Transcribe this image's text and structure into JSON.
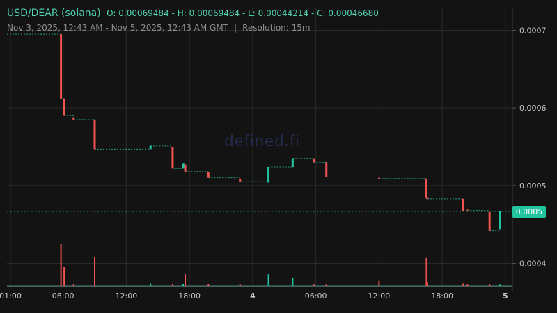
{
  "header": {
    "pair": "USD/DEAR (solana)",
    "ohlc": "O: 0.00069484 - H: 0.00069484 - L: 0.00044214 - C: 0.00046680",
    "range": "Nov 3, 2025, 12:43 AM - Nov 5, 2025, 12:43 AM GMT",
    "separator": "|",
    "resolution": "Resolution: 15m"
  },
  "watermark": "defined.fi",
  "current_price_label": "0.0005",
  "colors": {
    "up": "#22c39f",
    "down": "#ef5350",
    "background": "#131313",
    "grid": "#2b2b2b",
    "text": "#c7c7c7"
  },
  "chart_data": {
    "type": "candlestick",
    "title": "USD/DEAR (solana)",
    "y_ticks": [
      "0.0007",
      "0.0006",
      "0.0005",
      "0.0004"
    ],
    "y_tick_values": [
      0.0007,
      0.0006,
      0.0005,
      0.0004
    ],
    "x_tick_labels": [
      "01:00",
      "06:00",
      "12:00",
      "18:00",
      "4",
      "06:00",
      "12:00",
      "18:00",
      "5"
    ],
    "x_tick_hours": [
      1,
      6,
      12,
      18,
      24,
      30,
      36,
      42,
      48
    ],
    "ylim": [
      0.00037,
      0.00073
    ],
    "xlim_hours": [
      0.67,
      48.67
    ],
    "current_price": 0.0004668,
    "candles": [
      {
        "t": 5.8,
        "o": 0.000695,
        "c": 0.000612,
        "h": 0.000695,
        "l": 0.000612,
        "v": 1.0
      },
      {
        "t": 6.1,
        "o": 0.000612,
        "c": 0.00059,
        "h": 0.000612,
        "l": 0.00059,
        "v": 0.45
      },
      {
        "t": 7.0,
        "o": 0.000588,
        "c": 0.000585,
        "h": 0.000588,
        "l": 0.000585,
        "v": 0.05
      },
      {
        "t": 9.0,
        "o": 0.000584,
        "c": 0.000547,
        "h": 0.000584,
        "l": 0.000547,
        "v": 0.7
      },
      {
        "t": 14.3,
        "o": 0.000547,
        "c": 0.000551,
        "h": 0.000551,
        "l": 0.000547,
        "v": 0.06
      },
      {
        "t": 16.4,
        "o": 0.00055,
        "c": 0.000522,
        "h": 0.00055,
        "l": 0.000522,
        "v": 0.05
      },
      {
        "t": 17.4,
        "o": 0.000522,
        "c": 0.000528,
        "h": 0.000528,
        "l": 0.000522,
        "v": 0.05
      },
      {
        "t": 17.6,
        "o": 0.000527,
        "c": 0.000518,
        "h": 0.000527,
        "l": 0.000518,
        "v": 0.28
      },
      {
        "t": 19.8,
        "o": 0.000517,
        "c": 0.00051,
        "h": 0.000517,
        "l": 0.00051,
        "v": 0.04
      },
      {
        "t": 22.8,
        "o": 0.000509,
        "c": 0.000505,
        "h": 0.000509,
        "l": 0.000505,
        "v": 0.04
      },
      {
        "t": 25.5,
        "o": 0.000504,
        "c": 0.000524,
        "h": 0.000524,
        "l": 0.000504,
        "v": 0.28
      },
      {
        "t": 27.8,
        "o": 0.000524,
        "c": 0.000535,
        "h": 0.000535,
        "l": 0.000524,
        "v": 0.2
      },
      {
        "t": 29.8,
        "o": 0.000535,
        "c": 0.00053,
        "h": 0.000535,
        "l": 0.00053,
        "v": 0.04
      },
      {
        "t": 31.0,
        "o": 0.00053,
        "c": 0.000511,
        "h": 0.00053,
        "l": 0.000511,
        "v": 0.03
      },
      {
        "t": 36.0,
        "o": 0.00051,
        "c": 0.000509,
        "h": 0.00051,
        "l": 0.000509,
        "v": 0.12
      },
      {
        "t": 40.5,
        "o": 0.000509,
        "c": 0.000485,
        "h": 0.000509,
        "l": 0.000483,
        "v": 0.67
      },
      {
        "t": 40.6,
        "o": 0.000485,
        "c": 0.000483,
        "h": 0.000485,
        "l": 0.000483,
        "v": 0.08
      },
      {
        "t": 44.0,
        "o": 0.000483,
        "c": 0.000467,
        "h": 0.000483,
        "l": 0.000467,
        "v": 0.06
      },
      {
        "t": 44.4,
        "o": 0.000469,
        "c": 0.000468,
        "h": 0.000469,
        "l": 0.000468,
        "v": 0.03
      },
      {
        "t": 46.5,
        "o": 0.000466,
        "c": 0.000442,
        "h": 0.000466,
        "l": 0.000442,
        "v": 0.05
      },
      {
        "t": 47.5,
        "o": 0.000444,
        "c": 0.000467,
        "h": 0.000467,
        "l": 0.000444,
        "v": 0.03
      }
    ]
  }
}
